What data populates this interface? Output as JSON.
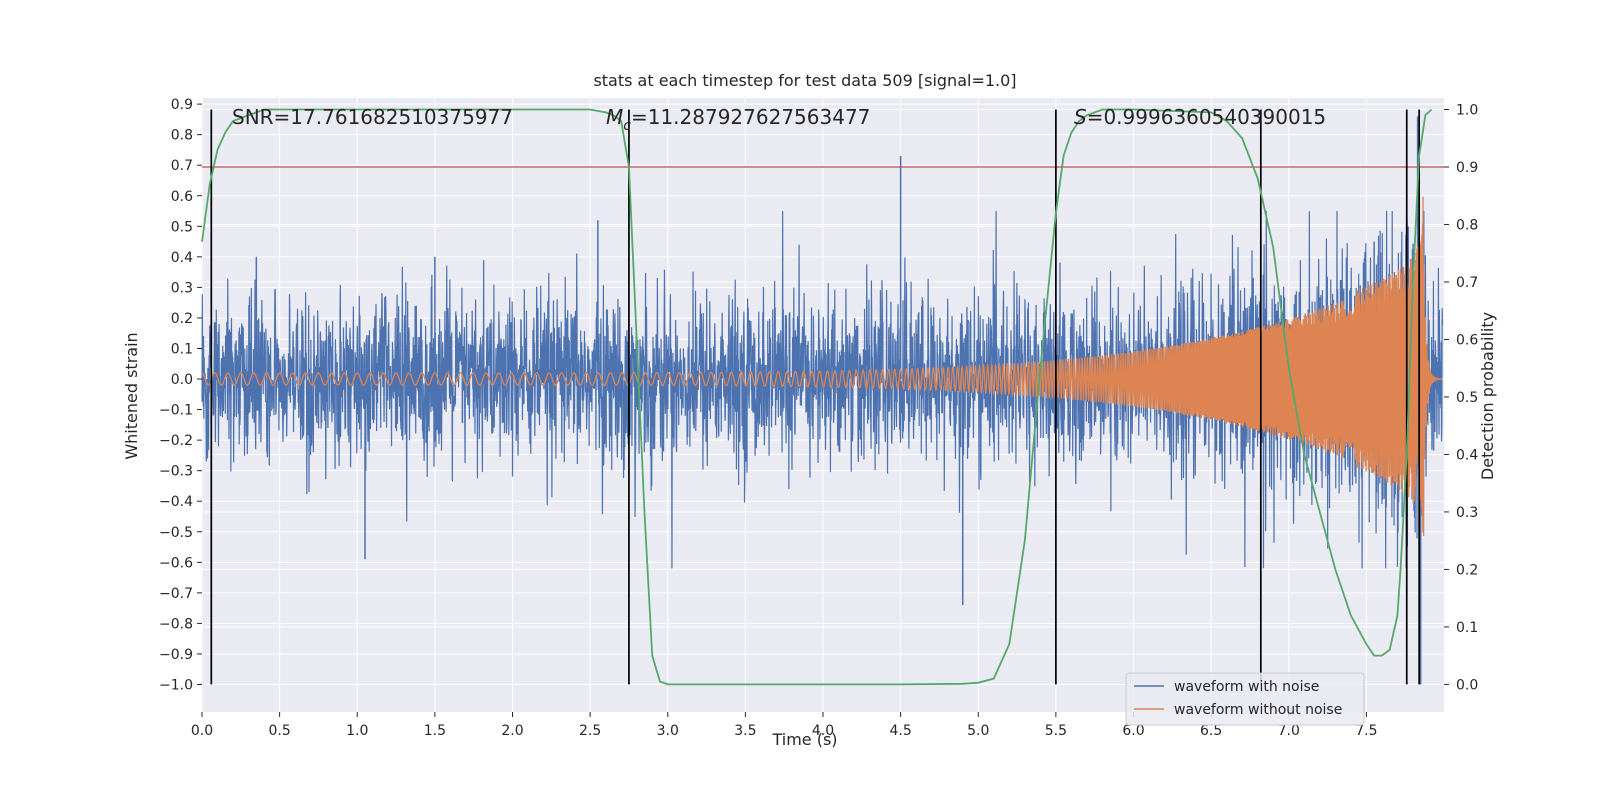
{
  "chart_data": {
    "type": "line",
    "title": "stats at each timestep for test data 509 [signal=1.0]",
    "xlabel": "Time (s)",
    "ylabel": "Whitened strain",
    "y2label": "Detection probability",
    "xlim": [
      0,
      8.0
    ],
    "ylim": [
      -1.09,
      0.92
    ],
    "y2lim": [
      -0.048,
      1.02
    ],
    "xticks": [
      "0.0",
      "0.5",
      "1.0",
      "1.5",
      "2.0",
      "2.5",
      "3.0",
      "3.5",
      "4.0",
      "4.5",
      "5.0",
      "5.5",
      "6.0",
      "6.5",
      "7.0",
      "7.5"
    ],
    "yticks": [
      "0.9",
      "0.8",
      "0.7",
      "0.6",
      "0.5",
      "0.4",
      "0.3",
      "0.2",
      "0.1",
      "0.0",
      "−0.1",
      "−0.2",
      "−0.3",
      "−0.4",
      "−0.5",
      "−0.6",
      "−0.7",
      "−0.8",
      "−0.9",
      "−1.0"
    ],
    "y2ticks": [
      "1.0",
      "0.9",
      "0.8",
      "0.7",
      "0.6",
      "0.5",
      "0.4",
      "0.3",
      "0.2",
      "0.1",
      "0.0"
    ],
    "annotations": {
      "snr": "SNR=17.761682510375977",
      "mc": "M",
      "mc_sub": "c",
      "mc_value": "=11.287927627563477",
      "s": "S",
      "s_value": "=0.9996360540390015"
    },
    "threshold": 0.9,
    "vlines": [
      0.06,
      2.75,
      5.5,
      6.82,
      7.76,
      7.84
    ],
    "noise": {
      "std": 0.13,
      "spike_up_at": [
        [
          0.35,
          0.4
        ],
        [
          1.5,
          0.4
        ],
        [
          2.55,
          0.52
        ],
        [
          4.5,
          0.73
        ],
        [
          7.55,
          0.45
        ],
        [
          7.83,
          0.86
        ]
      ],
      "spike_down_at": [
        [
          1.05,
          -0.59
        ],
        [
          4.9,
          -0.74
        ],
        [
          7.85,
          -1.0
        ]
      ]
    },
    "signal": {
      "amp_start": 0.02,
      "amp_end": 0.38,
      "f_start": 12,
      "f_end": 90,
      "merger": 7.87
    },
    "probability": {
      "x": [
        0.0,
        0.05,
        0.1,
        0.15,
        0.2,
        0.3,
        0.4,
        0.5,
        1.0,
        1.5,
        2.0,
        2.5,
        2.6,
        2.65,
        2.7,
        2.75,
        2.8,
        2.85,
        2.9,
        2.95,
        3.0,
        3.5,
        4.0,
        4.5,
        4.9,
        5.0,
        5.1,
        5.2,
        5.3,
        5.4,
        5.5,
        5.55,
        5.6,
        5.65,
        5.7,
        5.75,
        5.8,
        5.9,
        6.0,
        6.5,
        6.6,
        6.7,
        6.8,
        6.9,
        7.0,
        7.1,
        7.2,
        7.3,
        7.4,
        7.5,
        7.55,
        7.6,
        7.65,
        7.7,
        7.72,
        7.76,
        7.8,
        7.84,
        7.88,
        7.92
      ],
      "y": [
        0.77,
        0.87,
        0.93,
        0.96,
        0.98,
        0.99,
        1.0,
        1.0,
        1.0,
        1.0,
        1.0,
        1.0,
        0.995,
        0.99,
        0.98,
        0.9,
        0.6,
        0.3,
        0.05,
        0.005,
        0.0,
        0.0,
        0.0,
        0.0,
        0.001,
        0.003,
        0.01,
        0.07,
        0.25,
        0.55,
        0.82,
        0.92,
        0.96,
        0.98,
        0.99,
        0.995,
        1.0,
        1.0,
        1.0,
        0.995,
        0.98,
        0.95,
        0.88,
        0.76,
        0.55,
        0.4,
        0.3,
        0.2,
        0.12,
        0.07,
        0.05,
        0.05,
        0.06,
        0.12,
        0.2,
        0.4,
        0.7,
        0.92,
        0.99,
        1.0
      ]
    },
    "legend": {
      "position": "lower-right",
      "entries": [
        {
          "label": "waveform with noise",
          "color": "#4c72b0"
        },
        {
          "label": "waveform without noise",
          "color": "#dd8452"
        }
      ]
    },
    "colors": {
      "background": "#eaeaf2",
      "grid": "#ffffff",
      "noise": "#4c72b0",
      "signal": "#dd8452",
      "probability": "#55a868",
      "threshold": "#c44e52",
      "vline": "#000000"
    }
  }
}
